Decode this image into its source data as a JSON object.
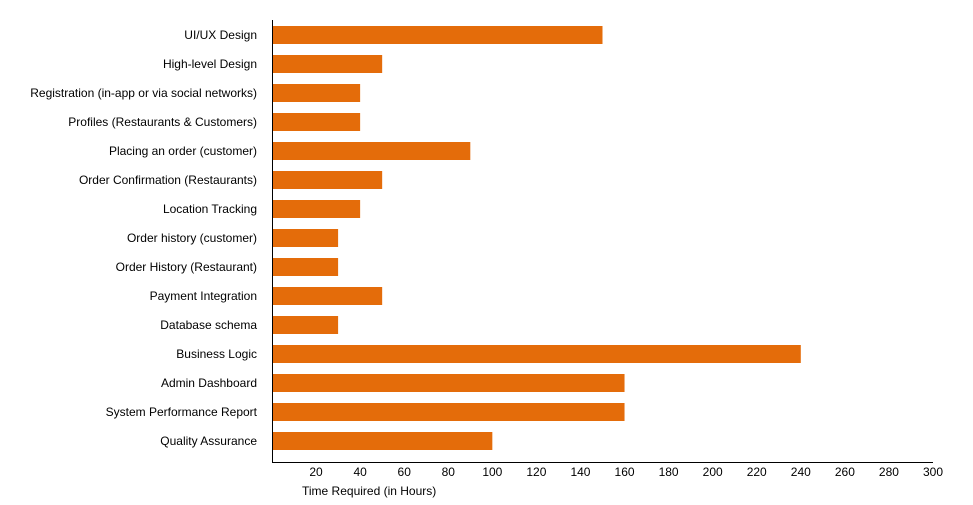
{
  "chart_data": {
    "type": "bar",
    "orientation": "horizontal",
    "categories": [
      "UI/UX Design",
      "High-level Design",
      "Registration (in-app or via social networks)",
      "Profiles (Restaurants & Customers)",
      "Placing an order (customer)",
      "Order Confirmation (Restaurants)",
      "Location Tracking",
      "Order history (customer)",
      "Order History (Restaurant)",
      "Payment Integration",
      "Database schema",
      "Business Logic",
      "Admin Dashboard",
      "System Performance Report",
      "Quality Assurance"
    ],
    "values": [
      150,
      50,
      40,
      40,
      90,
      50,
      40,
      30,
      30,
      50,
      30,
      240,
      160,
      160,
      100
    ],
    "xlabel": "Time Required (in Hours)",
    "ylabel": "",
    "xlim": [
      0,
      300
    ],
    "xticks": [
      20,
      40,
      60,
      80,
      100,
      120,
      140,
      160,
      180,
      200,
      220,
      240,
      260,
      280,
      300
    ],
    "grid": false,
    "legend": "none",
    "bar_color": "#E46C0A"
  }
}
